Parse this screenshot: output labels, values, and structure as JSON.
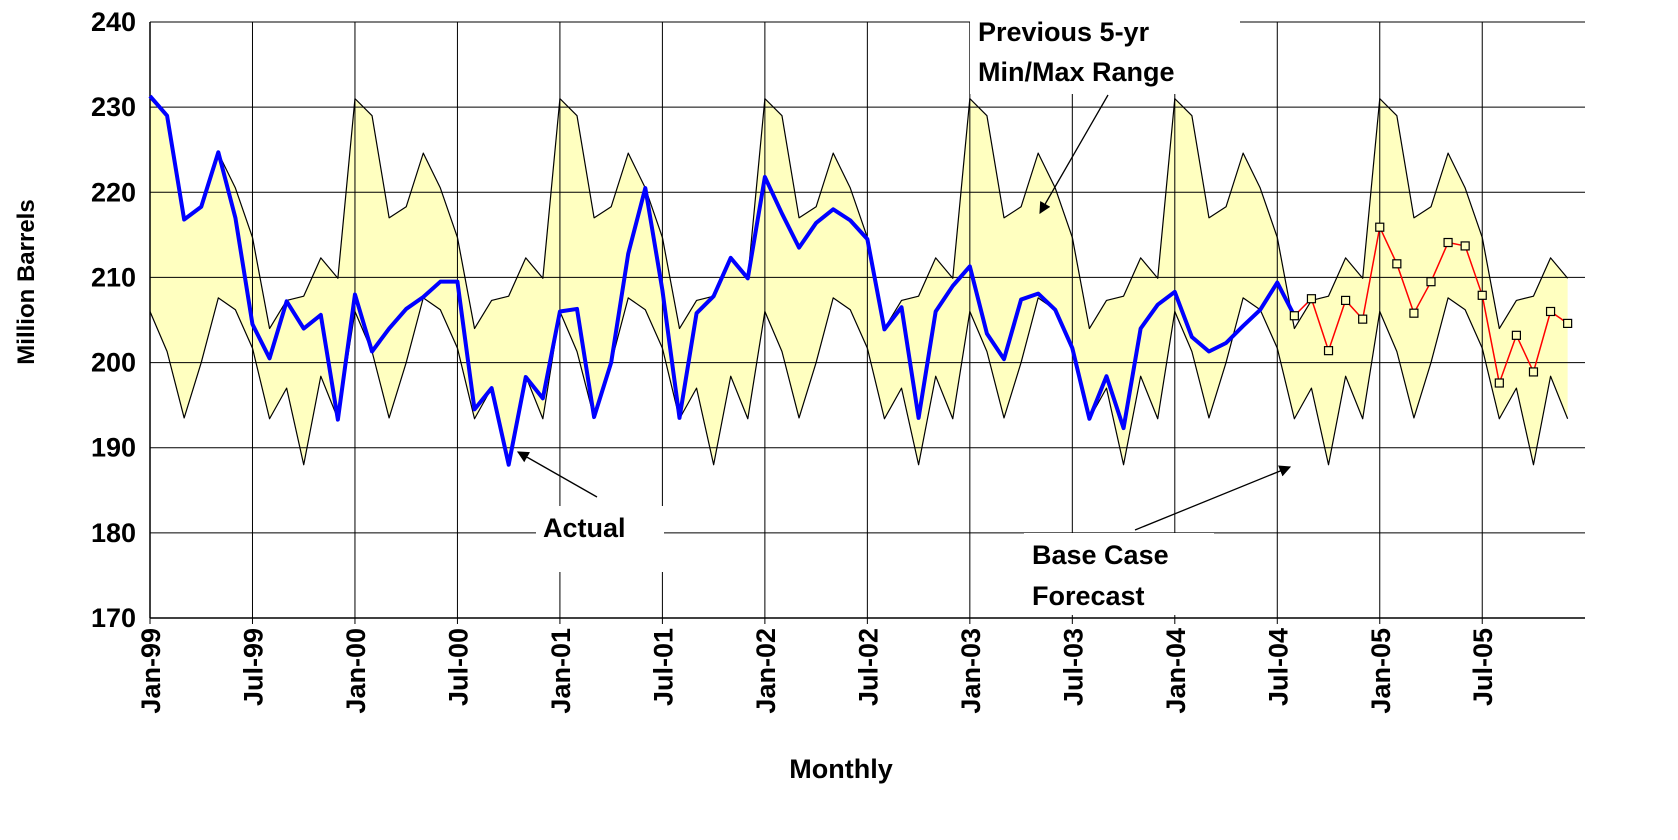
{
  "chart_data": {
    "type": "line",
    "xlabel": "Monthly",
    "ylabel": "Million Barrels",
    "categories": [
      "Jan-99",
      null,
      null,
      null,
      null,
      null,
      "Jul-99",
      null,
      null,
      null,
      null,
      null,
      "Jan-00",
      null,
      null,
      null,
      null,
      null,
      "Jul-00",
      null,
      null,
      null,
      null,
      null,
      "Jan-01",
      null,
      null,
      null,
      null,
      null,
      "Jul-01",
      null,
      null,
      null,
      null,
      null,
      "Jan-02",
      null,
      null,
      null,
      null,
      null,
      "Jul-02",
      null,
      null,
      null,
      null,
      null,
      "Jan-03",
      null,
      null,
      null,
      null,
      null,
      "Jul-03",
      null,
      null,
      null,
      null,
      null,
      "Jan-04",
      null,
      null,
      null,
      null,
      null,
      "Jul-04",
      null,
      null,
      null,
      null,
      null,
      "Jan-05",
      null,
      null,
      null,
      null,
      null,
      "Jul-05",
      null,
      null,
      null,
      null,
      null
    ],
    "ylim": [
      170,
      240
    ],
    "yticks": [
      170,
      180,
      190,
      200,
      210,
      220,
      230,
      240
    ],
    "grid": true,
    "range_fill": "#ffffc0",
    "series": [
      {
        "color": "#000000",
        "role": "range-max",
        "values": [
          231,
          229,
          217,
          218.3,
          224.6,
          220.5,
          214.7,
          204,
          207.3,
          207.8,
          212.3,
          209.9,
          231,
          229,
          217,
          218.3,
          224.6,
          220.5,
          214.7,
          204,
          207.3,
          207.8,
          212.3,
          209.9,
          231,
          229,
          217,
          218.3,
          224.6,
          220.5,
          214.7,
          204,
          207.3,
          207.8,
          212.3,
          209.9,
          231,
          229,
          217,
          218.3,
          224.6,
          220.5,
          214.7,
          204,
          207.3,
          207.8,
          212.3,
          209.9,
          231,
          229,
          217,
          218.3,
          224.6,
          220.5,
          214.7,
          204,
          207.3,
          207.8,
          212.3,
          209.9,
          231,
          229,
          217,
          218.3,
          224.6,
          220.5,
          214.7,
          204,
          207.3,
          207.8,
          212.3,
          209.9,
          231,
          229,
          217,
          218.3,
          224.6,
          220.5,
          214.7,
          204,
          207.3,
          207.8,
          212.3,
          209.9
        ]
      },
      {
        "color": "#000000",
        "role": "range-min",
        "values": [
          206,
          201.3,
          193.5,
          200,
          207.6,
          206.2,
          201.7,
          193.4,
          197,
          188,
          198.4,
          193.4,
          206,
          201.3,
          193.5,
          200,
          207.6,
          206.2,
          201.7,
          193.4,
          197,
          188,
          198.4,
          193.4,
          206,
          201.3,
          193.5,
          200,
          207.6,
          206.2,
          201.7,
          193.4,
          197,
          188,
          198.4,
          193.4,
          206,
          201.3,
          193.5,
          200,
          207.6,
          206.2,
          201.7,
          193.4,
          197,
          188,
          198.4,
          193.4,
          206,
          201.3,
          193.5,
          200,
          207.6,
          206.2,
          201.7,
          193.4,
          197,
          188,
          198.4,
          193.4,
          206,
          201.3,
          193.5,
          200,
          207.6,
          206.2,
          201.7,
          193.4,
          197,
          188,
          198.4,
          193.4,
          206,
          201.3,
          193.5,
          200,
          207.6,
          206.2,
          201.7,
          193.4,
          197,
          188,
          198.4,
          193.4
        ]
      },
      {
        "color": "#0000ff",
        "role": "actual",
        "values": [
          231.3,
          229,
          216.8,
          218.3,
          224.7,
          217,
          204.5,
          200.5,
          207.2,
          204,
          205.6,
          193.3,
          208,
          201.3,
          204,
          206.3,
          207.7,
          209.5,
          209.5,
          194.5,
          197,
          188,
          198.3,
          195.8,
          206,
          206.3,
          193.6,
          200,
          212.8,
          220.5,
          208.5,
          193.5,
          205.8,
          207.8,
          212.3,
          209.9,
          221.8,
          217.5,
          213.5,
          216.4,
          218,
          216.7,
          214.5,
          203.9,
          206.5,
          193.5,
          206,
          209,
          211.3,
          203.4,
          200.4,
          207.4,
          208.1,
          206.2,
          201.7,
          193.4,
          198.4,
          192.3,
          204,
          206.8,
          208.3,
          203,
          201.3,
          202.3,
          204.3,
          206.2,
          209.4,
          205.5,
          null,
          null,
          null,
          null,
          null,
          null,
          null,
          null,
          null,
          null,
          null,
          null,
          null,
          null,
          null,
          null
        ]
      },
      {
        "color": "#ff0000",
        "marker_fill": "#ffffc0",
        "role": "forecast",
        "values": [
          null,
          null,
          null,
          null,
          null,
          null,
          null,
          null,
          null,
          null,
          null,
          null,
          null,
          null,
          null,
          null,
          null,
          null,
          null,
          null,
          null,
          null,
          null,
          null,
          null,
          null,
          null,
          null,
          null,
          null,
          null,
          null,
          null,
          null,
          null,
          null,
          null,
          null,
          null,
          null,
          null,
          null,
          null,
          null,
          null,
          null,
          null,
          null,
          null,
          null,
          null,
          null,
          null,
          null,
          null,
          null,
          null,
          null,
          null,
          null,
          null,
          null,
          null,
          null,
          null,
          null,
          null,
          205.5,
          207.5,
          201.4,
          207.3,
          205.1,
          215.9,
          211.6,
          205.8,
          209.5,
          214.1,
          213.7,
          207.9,
          197.6,
          203.2,
          198.9,
          206,
          204.6
        ]
      }
    ],
    "annotations": [
      {
        "text": [
          "Previous 5-yr",
          "Min/Max Range"
        ]
      },
      {
        "text": [
          "Actual"
        ]
      },
      {
        "text": [
          "Base Case",
          "Forecast"
        ]
      }
    ]
  }
}
